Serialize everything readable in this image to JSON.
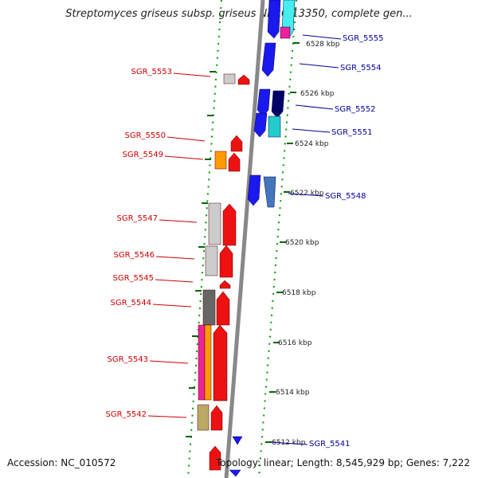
{
  "title": "Streptomyces griseus subsp. griseus NBRC 13350, complete gen...",
  "footer": {
    "accession": "Accession: NC_010572",
    "summary": "Topology: linear; Length: 8,545,929 bp; Genes: 7,222"
  },
  "colors": {
    "forward_label": "#cc0000",
    "reverse_label": "#000099",
    "backbone": "#888888",
    "tick": "#006600"
  },
  "kbp_ticks": [
    "6512 kbp",
    "6514 kbp",
    "6516 kbp",
    "6518 kbp",
    "6520 kbp",
    "6522 kbp",
    "6524 kbp",
    "6526 kbp",
    "6528 kbp"
  ],
  "genes_left": [
    "SGR_5553",
    "SGR_5550",
    "SGR_5549",
    "SGR_5547",
    "SGR_5546",
    "SGR_5545",
    "SGR_5544",
    "SGR_5543",
    "SGR_5542"
  ],
  "genes_right": [
    "SGR_5555",
    "SGR_5554",
    "SGR_5552",
    "SGR_5551",
    "SGR_5548",
    "SGR_5541"
  ]
}
